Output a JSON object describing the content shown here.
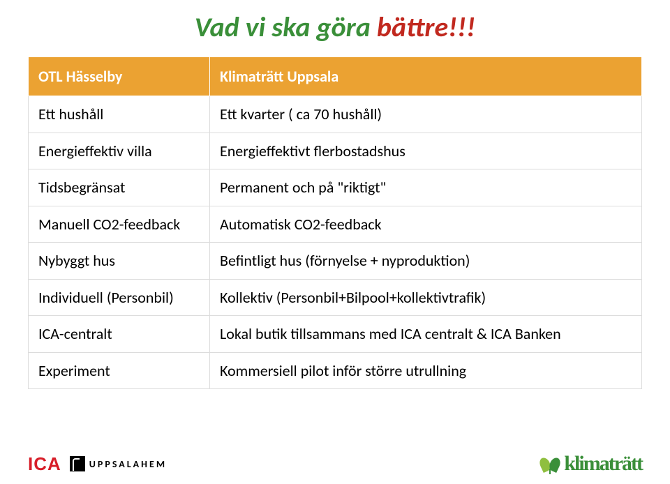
{
  "title_green": "Vad vi ska göra ",
  "title_red": "bättre!!!",
  "table": {
    "header": [
      "OTL Hässelby",
      "Klimaträtt Uppsala"
    ],
    "rows": [
      [
        "Ett hushåll",
        "Ett kvarter ( ca 70 hushåll)"
      ],
      [
        "Energieffektiv villa",
        "Energieffektivt flerbostadshus"
      ],
      [
        "Tidsbegränsat",
        "Permanent och på \"riktigt\""
      ],
      [
        "Manuell CO2-feedback",
        "Automatisk CO2-feedback"
      ],
      [
        "Nybyggt hus",
        "Befintligt hus  (förnyelse + nyproduktion)"
      ],
      [
        "Individuell (Personbil)",
        "Kollektiv (Personbil+Bilpool+kollektivtrafik)"
      ],
      [
        "ICA-centralt",
        "Lokal butik tillsammans med ICA centralt & ICA Banken"
      ],
      [
        "Experiment",
        "Kommersiell pilot inför större utrullning"
      ]
    ]
  },
  "footer": {
    "ica": "ICA",
    "uppsalahem": "UPPSALAHEM",
    "klimatratt": "klimaträtt"
  },
  "colors": {
    "green": "#3a8f39",
    "red": "#c1291f",
    "header_bg": "#eba232",
    "ica_red": "#d71d28"
  }
}
